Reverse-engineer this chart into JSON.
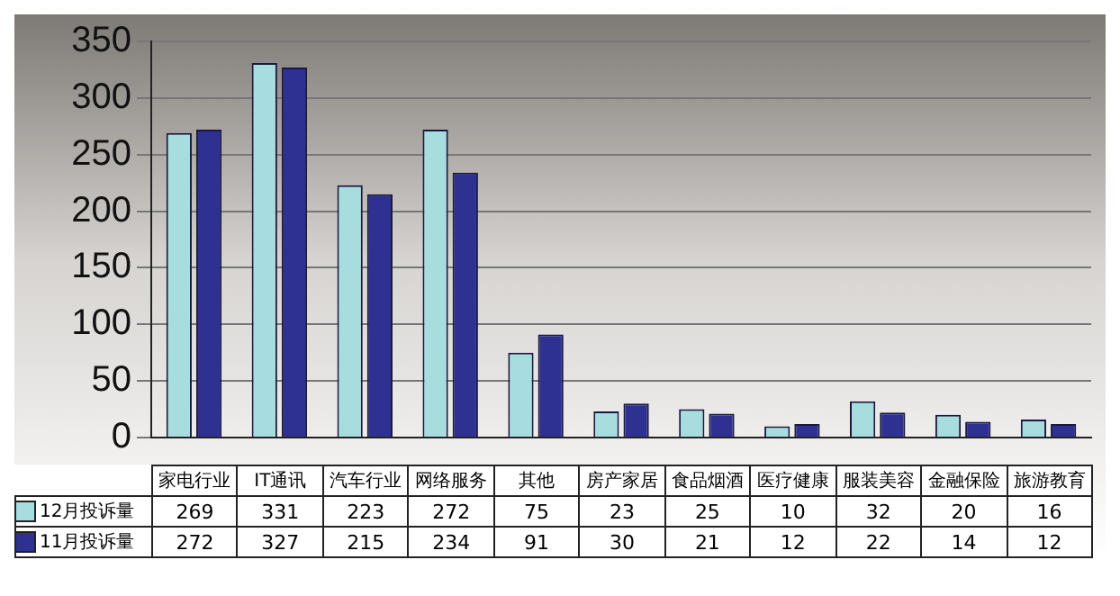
{
  "chart_data": {
    "type": "bar",
    "categories": [
      "家电行业",
      "IT通讯",
      "汽车行业",
      "网络服务",
      "其他",
      "房产家居",
      "食品烟酒",
      "医疗健康",
      "服装美容",
      "金融保险",
      "旅游教育"
    ],
    "series": [
      {
        "name": "12月投诉量",
        "color": "#a8dde0",
        "values": [
          269,
          331,
          223,
          272,
          75,
          23,
          25,
          10,
          32,
          20,
          16
        ]
      },
      {
        "name": "11月投诉量",
        "color": "#2e3192",
        "values": [
          272,
          327,
          215,
          234,
          91,
          30,
          21,
          12,
          22,
          14,
          12
        ]
      }
    ],
    "ylim": [
      0,
      350
    ],
    "yticks": [
      0,
      50,
      100,
      150,
      200,
      250,
      300,
      350
    ],
    "grid": "y",
    "legend": "bottom left",
    "data_labels": true
  }
}
